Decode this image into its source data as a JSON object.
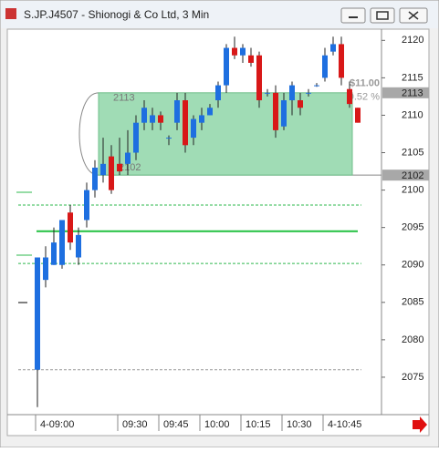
{
  "chart_data": {
    "type": "candlestick",
    "title": "S.JP.J4507 - Shionogi & Co Ltd, 3 Min",
    "categories": [
      "4-09:00",
      null,
      null,
      null,
      null,
      null,
      null,
      null,
      null,
      null,
      "09:30",
      null,
      null,
      null,
      null,
      "09:45",
      null,
      null,
      null,
      null,
      "10:00",
      null,
      null,
      null,
      null,
      "10:15",
      null,
      null,
      null,
      null,
      "10:30",
      null,
      null,
      null,
      null,
      "4-10:45",
      null,
      null,
      null,
      null
    ],
    "open": [
      2076,
      2088,
      2090,
      2090,
      2097,
      2091,
      2096,
      2100,
      2102,
      2104.5,
      2103.5,
      2103.5,
      2105,
      2109,
      2109,
      2110,
      2107,
      2109,
      2112,
      2107,
      2109,
      2110,
      2112,
      2114,
      2119,
      2118,
      2118,
      2118,
      2113,
      2113,
      2108.5,
      2112,
      2112,
      2113,
      2114,
      2115,
      2118.5,
      2119.5,
      2113.5,
      2111
    ],
    "high": [
      2091,
      2092.5,
      2095,
      2096,
      2098,
      2095,
      2101,
      2104,
      2107,
      2106,
      2107,
      2108,
      2110,
      2112,
      2111,
      2110.5,
      2107.3,
      2113,
      2113,
      2110,
      2111,
      2111.5,
      2114.5,
      2119.5,
      2120.5,
      2119.5,
      2119,
      2118.5,
      2113.5,
      2114,
      2113,
      2114.5,
      2113,
      2113.5,
      2114.3,
      2119,
      2120.5,
      2120.5,
      2114.5,
      2111
    ],
    "low": [
      2071,
      2087,
      2090,
      2089.5,
      2092,
      2090,
      2095,
      2099,
      2101,
      2099.5,
      2102,
      2102,
      2104,
      2108,
      2108,
      2108,
      2106,
      2108,
      2105,
      2106,
      2108,
      2110,
      2111,
      2113,
      2117.5,
      2117,
      2116.5,
      2111,
      2112.5,
      2107,
      2108,
      2110,
      2110,
      2112.5,
      2113.8,
      2114.5,
      2118,
      2114,
      2111,
      2109
    ],
    "close": [
      2091,
      2091,
      2093,
      2096,
      2093,
      2094,
      2100,
      2103,
      2103.5,
      2100,
      2102.5,
      2105,
      2109,
      2111,
      2110,
      2109,
      2107,
      2112,
      2106,
      2109.5,
      2110,
      2111,
      2114,
      2119,
      2118,
      2119,
      2117,
      2112,
      2113,
      2108,
      2112,
      2114,
      2111,
      2113,
      2114,
      2118,
      2119.5,
      2115,
      2111.5,
      2109
    ],
    "up_color": "#1e6fe0",
    "down_color": "#d81818",
    "ylim": [
      2070,
      2121.5
    ],
    "yticks": [
      2075,
      2080,
      2085,
      2090,
      2095,
      2100,
      2105,
      2110,
      2115,
      2120
    ],
    "price_tags": [
      2113,
      2102
    ],
    "levels": [
      {
        "value": 2098,
        "style": "dashed",
        "color": "#2db84d"
      },
      {
        "value": 2094.5,
        "style": "solid",
        "color": "#22c040"
      },
      {
        "value": 2090.2,
        "style": "dashed",
        "color": "#2db84d"
      },
      {
        "value": 2076,
        "style": "dashed",
        "color": "#999999"
      }
    ],
    "range_box": {
      "high": 2113,
      "low": 2102,
      "label_high": "2113",
      "label_low": "2102",
      "change": "$11.00",
      "change_pct": "0.52 %"
    }
  }
}
